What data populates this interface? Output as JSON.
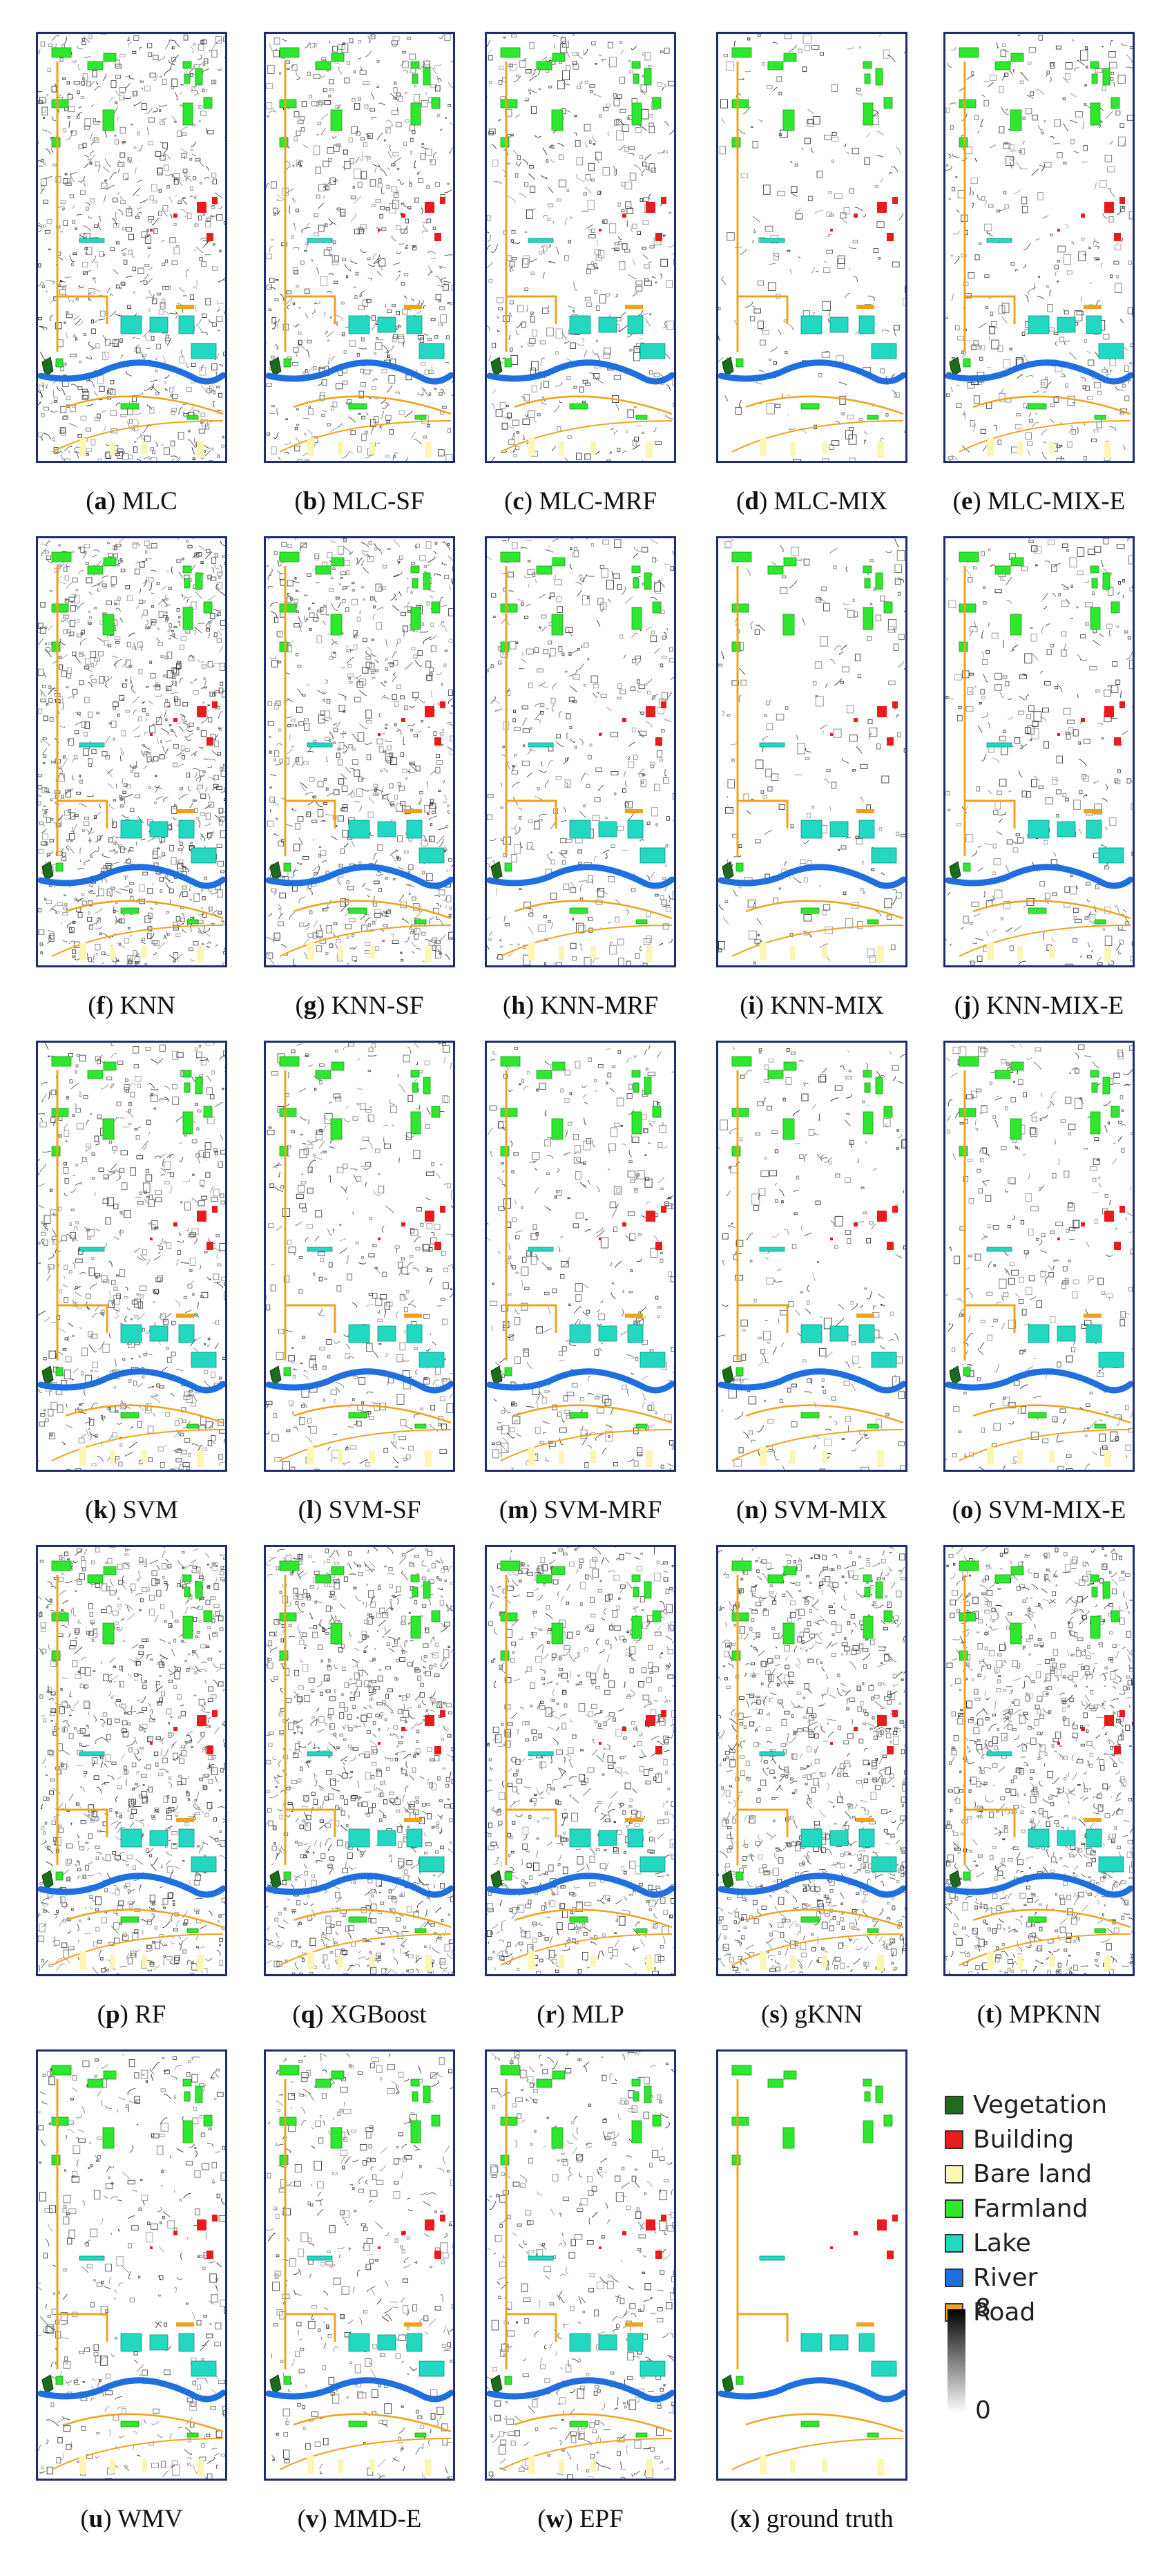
{
  "panels": [
    {
      "letter": "a",
      "name": "MLC",
      "density": 0.8,
      "gt": false
    },
    {
      "letter": "b",
      "name": "MLC-SF",
      "density": 0.6,
      "gt": false
    },
    {
      "letter": "c",
      "name": "MLC-MRF",
      "density": 0.45,
      "gt": false
    },
    {
      "letter": "d",
      "name": "MLC-MIX",
      "density": 0.15,
      "gt": false
    },
    {
      "letter": "e",
      "name": "MLC-MIX-E",
      "density": 0.35,
      "gt": false
    },
    {
      "letter": "f",
      "name": "KNN",
      "density": 1.0,
      "gt": false
    },
    {
      "letter": "g",
      "name": "KNN-SF",
      "density": 0.75,
      "gt": false
    },
    {
      "letter": "h",
      "name": "KNN-MRF",
      "density": 0.4,
      "gt": false
    },
    {
      "letter": "i",
      "name": "KNN-MIX",
      "density": 0.15,
      "gt": false
    },
    {
      "letter": "j",
      "name": "KNN-MIX-E",
      "density": 0.3,
      "gt": false
    },
    {
      "letter": "k",
      "name": "SVM",
      "density": 0.6,
      "gt": false
    },
    {
      "letter": "l",
      "name": "SVM-SF",
      "density": 0.35,
      "gt": false
    },
    {
      "letter": "m",
      "name": "SVM-MRF",
      "density": 0.35,
      "gt": false
    },
    {
      "letter": "n",
      "name": "SVM-MIX",
      "density": 0.2,
      "gt": false
    },
    {
      "letter": "o",
      "name": "SVM-MIX-E",
      "density": 0.3,
      "gt": false
    },
    {
      "letter": "p",
      "name": "RF",
      "density": 0.95,
      "gt": false
    },
    {
      "letter": "q",
      "name": "XGBoost",
      "density": 1.0,
      "gt": false
    },
    {
      "letter": "r",
      "name": "MLP",
      "density": 0.75,
      "gt": false
    },
    {
      "letter": "s",
      "name": "gKNN",
      "density": 1.0,
      "gt": false
    },
    {
      "letter": "t",
      "name": "MPKNN",
      "density": 1.0,
      "gt": false
    },
    {
      "letter": "u",
      "name": "WMV",
      "density": 0.35,
      "gt": false
    },
    {
      "letter": "v",
      "name": "MMD-E",
      "density": 0.35,
      "gt": false
    },
    {
      "letter": "w",
      "name": "EPF",
      "density": 0.4,
      "gt": false
    },
    {
      "letter": "x",
      "name": "ground truth",
      "density": 0,
      "gt": true
    }
  ],
  "legend": [
    {
      "label": "Vegetation",
      "color": "#1e6b1e"
    },
    {
      "label": "Building",
      "color": "#e81c1c"
    },
    {
      "label": "Bare land",
      "color": "#fbf6b4"
    },
    {
      "label": "Farmland",
      "color": "#2ee82e"
    },
    {
      "label": "Lake",
      "color": "#22d8c0"
    },
    {
      "label": "River",
      "color": "#1f6fe0"
    },
    {
      "label": "Road",
      "color": "#f0a21c"
    }
  ],
  "colorbar": {
    "max_label": "8",
    "min_label": "0"
  }
}
